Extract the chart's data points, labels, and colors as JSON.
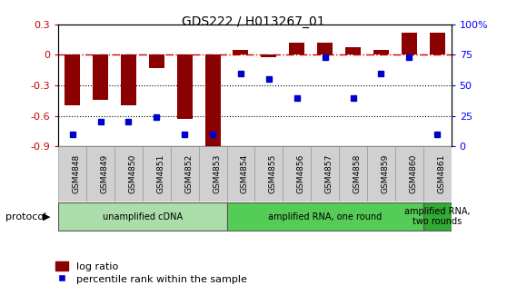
{
  "title": "GDS222 / H013267_01",
  "samples": [
    "GSM4848",
    "GSM4849",
    "GSM4850",
    "GSM4851",
    "GSM4852",
    "GSM4853",
    "GSM4854",
    "GSM4855",
    "GSM4856",
    "GSM4857",
    "GSM4858",
    "GSM4859",
    "GSM4860",
    "GSM4861"
  ],
  "log_ratio": [
    -0.5,
    -0.44,
    -0.5,
    -0.13,
    -0.63,
    -0.92,
    0.05,
    -0.02,
    0.12,
    0.12,
    0.08,
    0.05,
    0.22,
    0.22
  ],
  "percentile": [
    10,
    20,
    20,
    24,
    10,
    10,
    60,
    55,
    40,
    73,
    40,
    60,
    73,
    10
  ],
  "bar_color": "#8B0000",
  "dot_color": "#0000CC",
  "ylim_left": [
    -0.9,
    0.3
  ],
  "ylim_right": [
    0,
    100
  ],
  "yticks_left": [
    -0.9,
    -0.6,
    -0.3,
    0.0,
    0.3
  ],
  "ytick_labels_left": [
    "-0.9",
    "-0.6",
    "-0.3",
    "0",
    "0.3"
  ],
  "yticks_right": [
    0,
    25,
    50,
    75,
    100
  ],
  "ytick_labels_right": [
    "0",
    "25",
    "50",
    "75",
    "100%"
  ],
  "protocol_groups": [
    {
      "label": "unamplified cDNA",
      "start": 0,
      "end": 5,
      "color": "#AADDAA"
    },
    {
      "label": "amplified RNA, one round",
      "start": 6,
      "end": 12,
      "color": "#55CC55"
    },
    {
      "label": "amplified RNA,\ntwo rounds",
      "start": 13,
      "end": 13,
      "color": "#33AA33"
    }
  ],
  "legend_bar_label": "log ratio",
  "legend_dot_label": "percentile rank within the sample",
  "bar_width": 0.55,
  "protocol_label": "protocol",
  "zero_line_color": "#CC0000",
  "xtick_bg": "#CCCCCC"
}
